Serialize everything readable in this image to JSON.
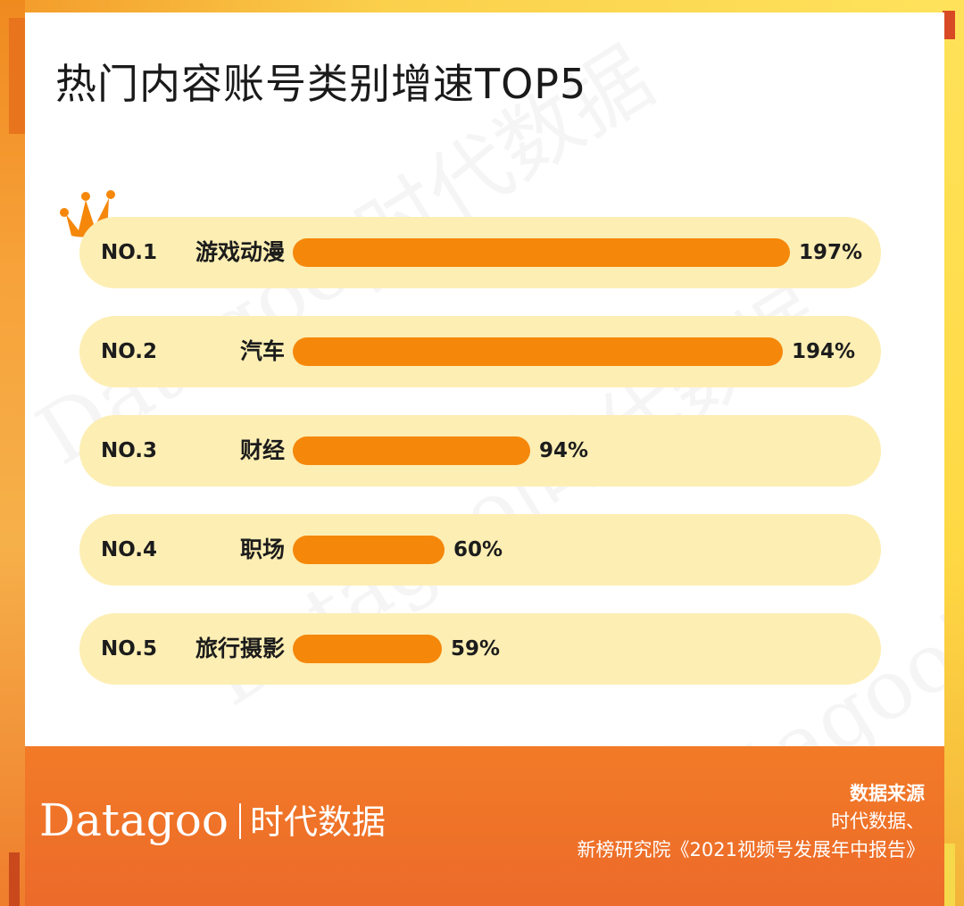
{
  "title": "热门内容账号类别增速TOP5",
  "watermark_text": "Datagoo|时代数据",
  "colors": {
    "bar": "#f5870a",
    "track": "#fdeeb3",
    "footer": "#ec6a2a",
    "crown": "#f5870a"
  },
  "chart_data": {
    "type": "bar",
    "orientation": "horizontal",
    "title": "热门内容账号类别增速TOP5",
    "value_unit": "%",
    "categories": [
      "游戏动漫",
      "汽车",
      "财经",
      "职场",
      "旅行摄影"
    ],
    "ranks": [
      "NO.1",
      "NO.2",
      "NO.3",
      "NO.4",
      "NO.5"
    ],
    "values": [
      197,
      194,
      94,
      60,
      59
    ],
    "value_labels": [
      "197%",
      "194%",
      "94%",
      "60%",
      "59%"
    ],
    "xlim": [
      0,
      197
    ],
    "grid": false,
    "legend": "none"
  },
  "footer": {
    "logo_main": "Datagoo",
    "logo_cn": "时代数据",
    "source_title": "数据来源",
    "source_line1": "时代数据、",
    "source_line2": "新榜研究院《2021视频号发展年中报告》"
  }
}
